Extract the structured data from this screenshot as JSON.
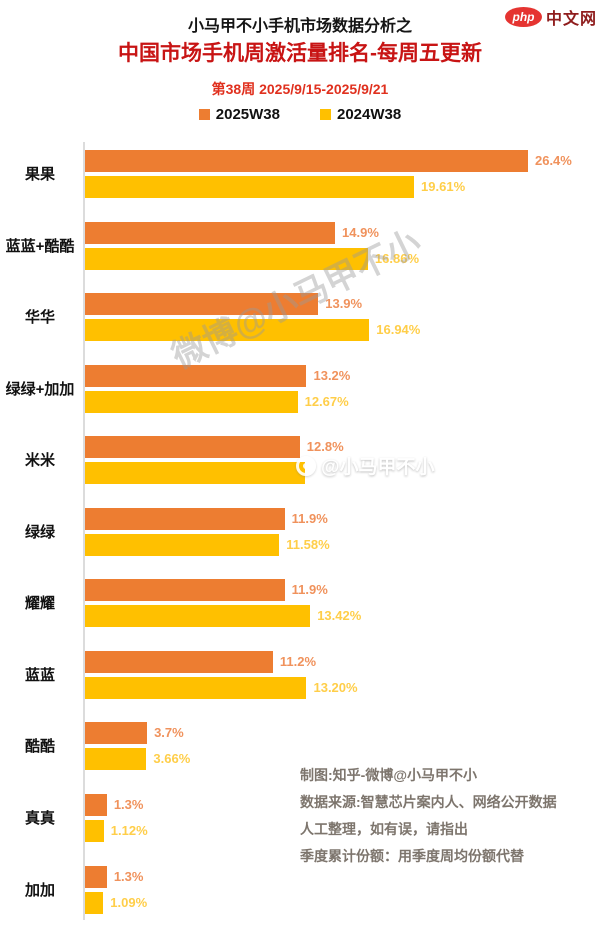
{
  "brand": {
    "oval_text": "php",
    "site_text": "中文网"
  },
  "header": {
    "kicker": "小马甲不小手机市场数据分析之",
    "title": "中国市场手机周激活量排名-每周五更新",
    "subtitle": "第38周 2025/9/15-2025/9/21"
  },
  "watermarks": {
    "diagonal": "微博@小马甲不小",
    "inline": "@小马甲不小"
  },
  "footer": {
    "lines": [
      "制图:知乎-微博@小马甲不小",
      "数据来源:智慧芯片案内人、网络公开数据",
      "人工整理，如有误，请指出",
      "季度累计份额：用季度周均份额代替"
    ]
  },
  "chart_data": {
    "type": "bar",
    "orientation": "horizontal",
    "title": "中国市场手机周激活量排名-每周五更新",
    "subtitle": "第38周 2025/9/15-2025/9/21",
    "legend_position": "top",
    "grid": false,
    "xlim": [
      0,
      28
    ],
    "categories": [
      "果果",
      "蓝蓝+酷酷",
      "华华",
      "绿绿+加加",
      "米米",
      "绿绿",
      "耀耀",
      "蓝蓝",
      "酷酷",
      "真真",
      "加加"
    ],
    "series": [
      {
        "name": "2025W38",
        "color": "#ED7D31",
        "label_color": "#F0925C",
        "values": [
          26.4,
          14.9,
          13.9,
          13.2,
          12.8,
          11.9,
          11.9,
          11.2,
          3.7,
          1.3,
          1.3
        ],
        "labels": [
          "26.4%",
          "14.9%",
          "13.9%",
          "13.2%",
          "12.8%",
          "11.9%",
          "11.9%",
          "11.2%",
          "3.7%",
          "1.3%",
          "1.3%"
        ]
      },
      {
        "name": "2024W38",
        "color": "#FFC000",
        "label_color": "#FFCE49",
        "values": [
          19.61,
          16.86,
          16.94,
          12.67,
          13.1,
          11.58,
          13.42,
          13.2,
          3.66,
          1.12,
          1.09
        ],
        "labels": [
          "19.61%",
          "16.86%",
          "16.94%",
          "12.67%",
          "",
          "11.58%",
          "13.42%",
          "13.20%",
          "3.66%",
          "1.12%",
          "1.09%"
        ]
      }
    ]
  }
}
